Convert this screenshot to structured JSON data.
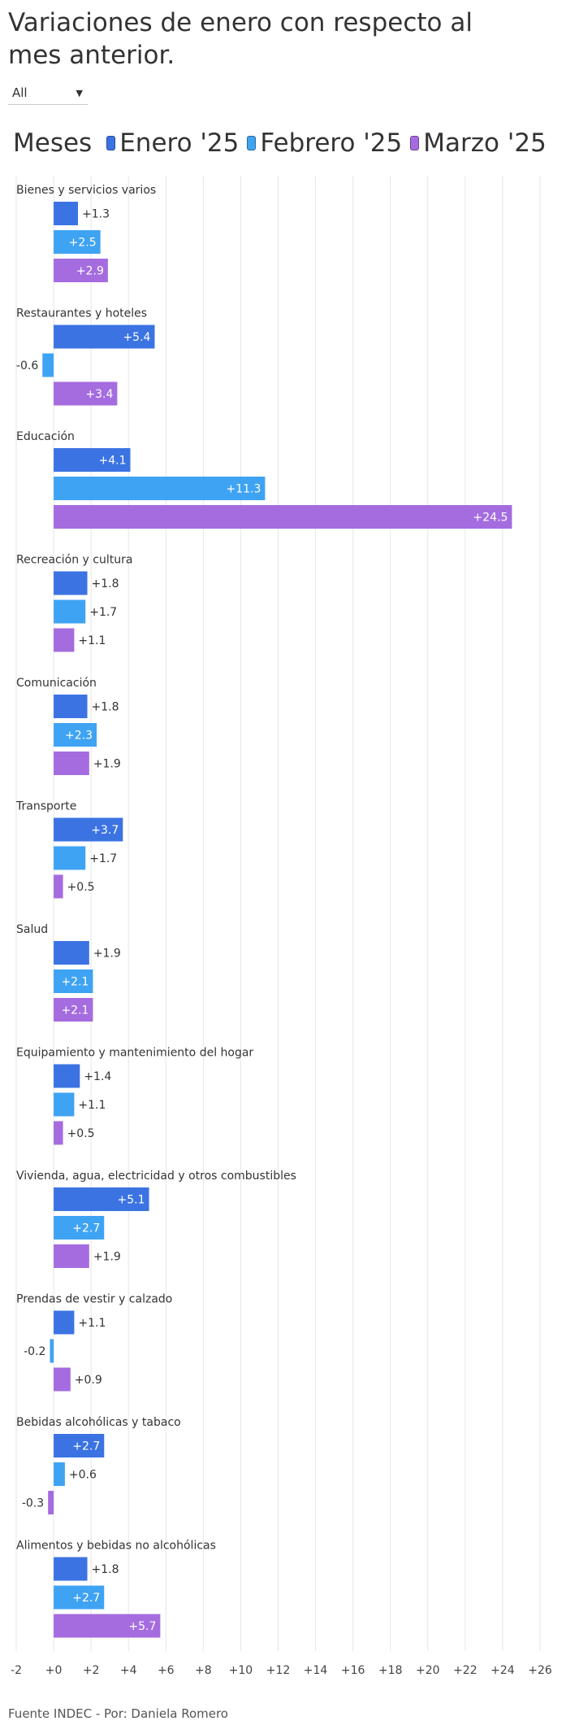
{
  "header": {
    "title": "Variaciones de enero con respecto al mes anterior."
  },
  "filter": {
    "selected": "All"
  },
  "legend": {
    "title": "Meses"
  },
  "footer": {
    "source": "Fuente INDEC - Por: Daniela Romero"
  },
  "colors": {
    "Enero '25": "#3b73e3",
    "Febrero '25": "#3fa3f3",
    "Marzo '25": "#a56ce0",
    "gridline": "#e6e6e6",
    "label_inside": "#ffffff",
    "label_outside": "#333333"
  },
  "chart_data": {
    "type": "bar",
    "orientation": "horizontal",
    "categories": [
      "Bienes y servicios varios",
      "Restaurantes y hoteles",
      "Educación",
      "Recreación y cultura",
      "Comunicación",
      "Transporte",
      "Salud",
      "Equipamiento y mantenimiento del hogar",
      "Vivienda, agua, electricidad y otros combustibles",
      "Prendas de vestir y calzado",
      "Bebidas alcohólicas y tabaco",
      "Alimentos y bebidas no alcohólicas"
    ],
    "series": [
      {
        "name": "Enero '25",
        "values": [
          1.3,
          5.4,
          4.1,
          1.8,
          1.8,
          3.7,
          1.9,
          1.4,
          5.1,
          1.1,
          2.7,
          1.8
        ]
      },
      {
        "name": "Febrero '25",
        "values": [
          2.5,
          -0.6,
          11.3,
          1.7,
          2.3,
          1.7,
          2.1,
          1.1,
          2.7,
          -0.2,
          0.6,
          2.7
        ]
      },
      {
        "name": "Marzo '25",
        "values": [
          2.9,
          3.4,
          24.5,
          1.1,
          1.9,
          0.5,
          2.1,
          0.5,
          1.9,
          0.9,
          -0.3,
          5.7
        ]
      }
    ],
    "xlim": [
      -2,
      26
    ],
    "xticks": [
      "-2",
      "+0",
      "+2",
      "+4",
      "+6",
      "+8",
      "+10",
      "+12",
      "+14",
      "+16",
      "+18",
      "+20",
      "+22",
      "+24",
      "+26"
    ],
    "grid": true,
    "legend_position": "top"
  }
}
